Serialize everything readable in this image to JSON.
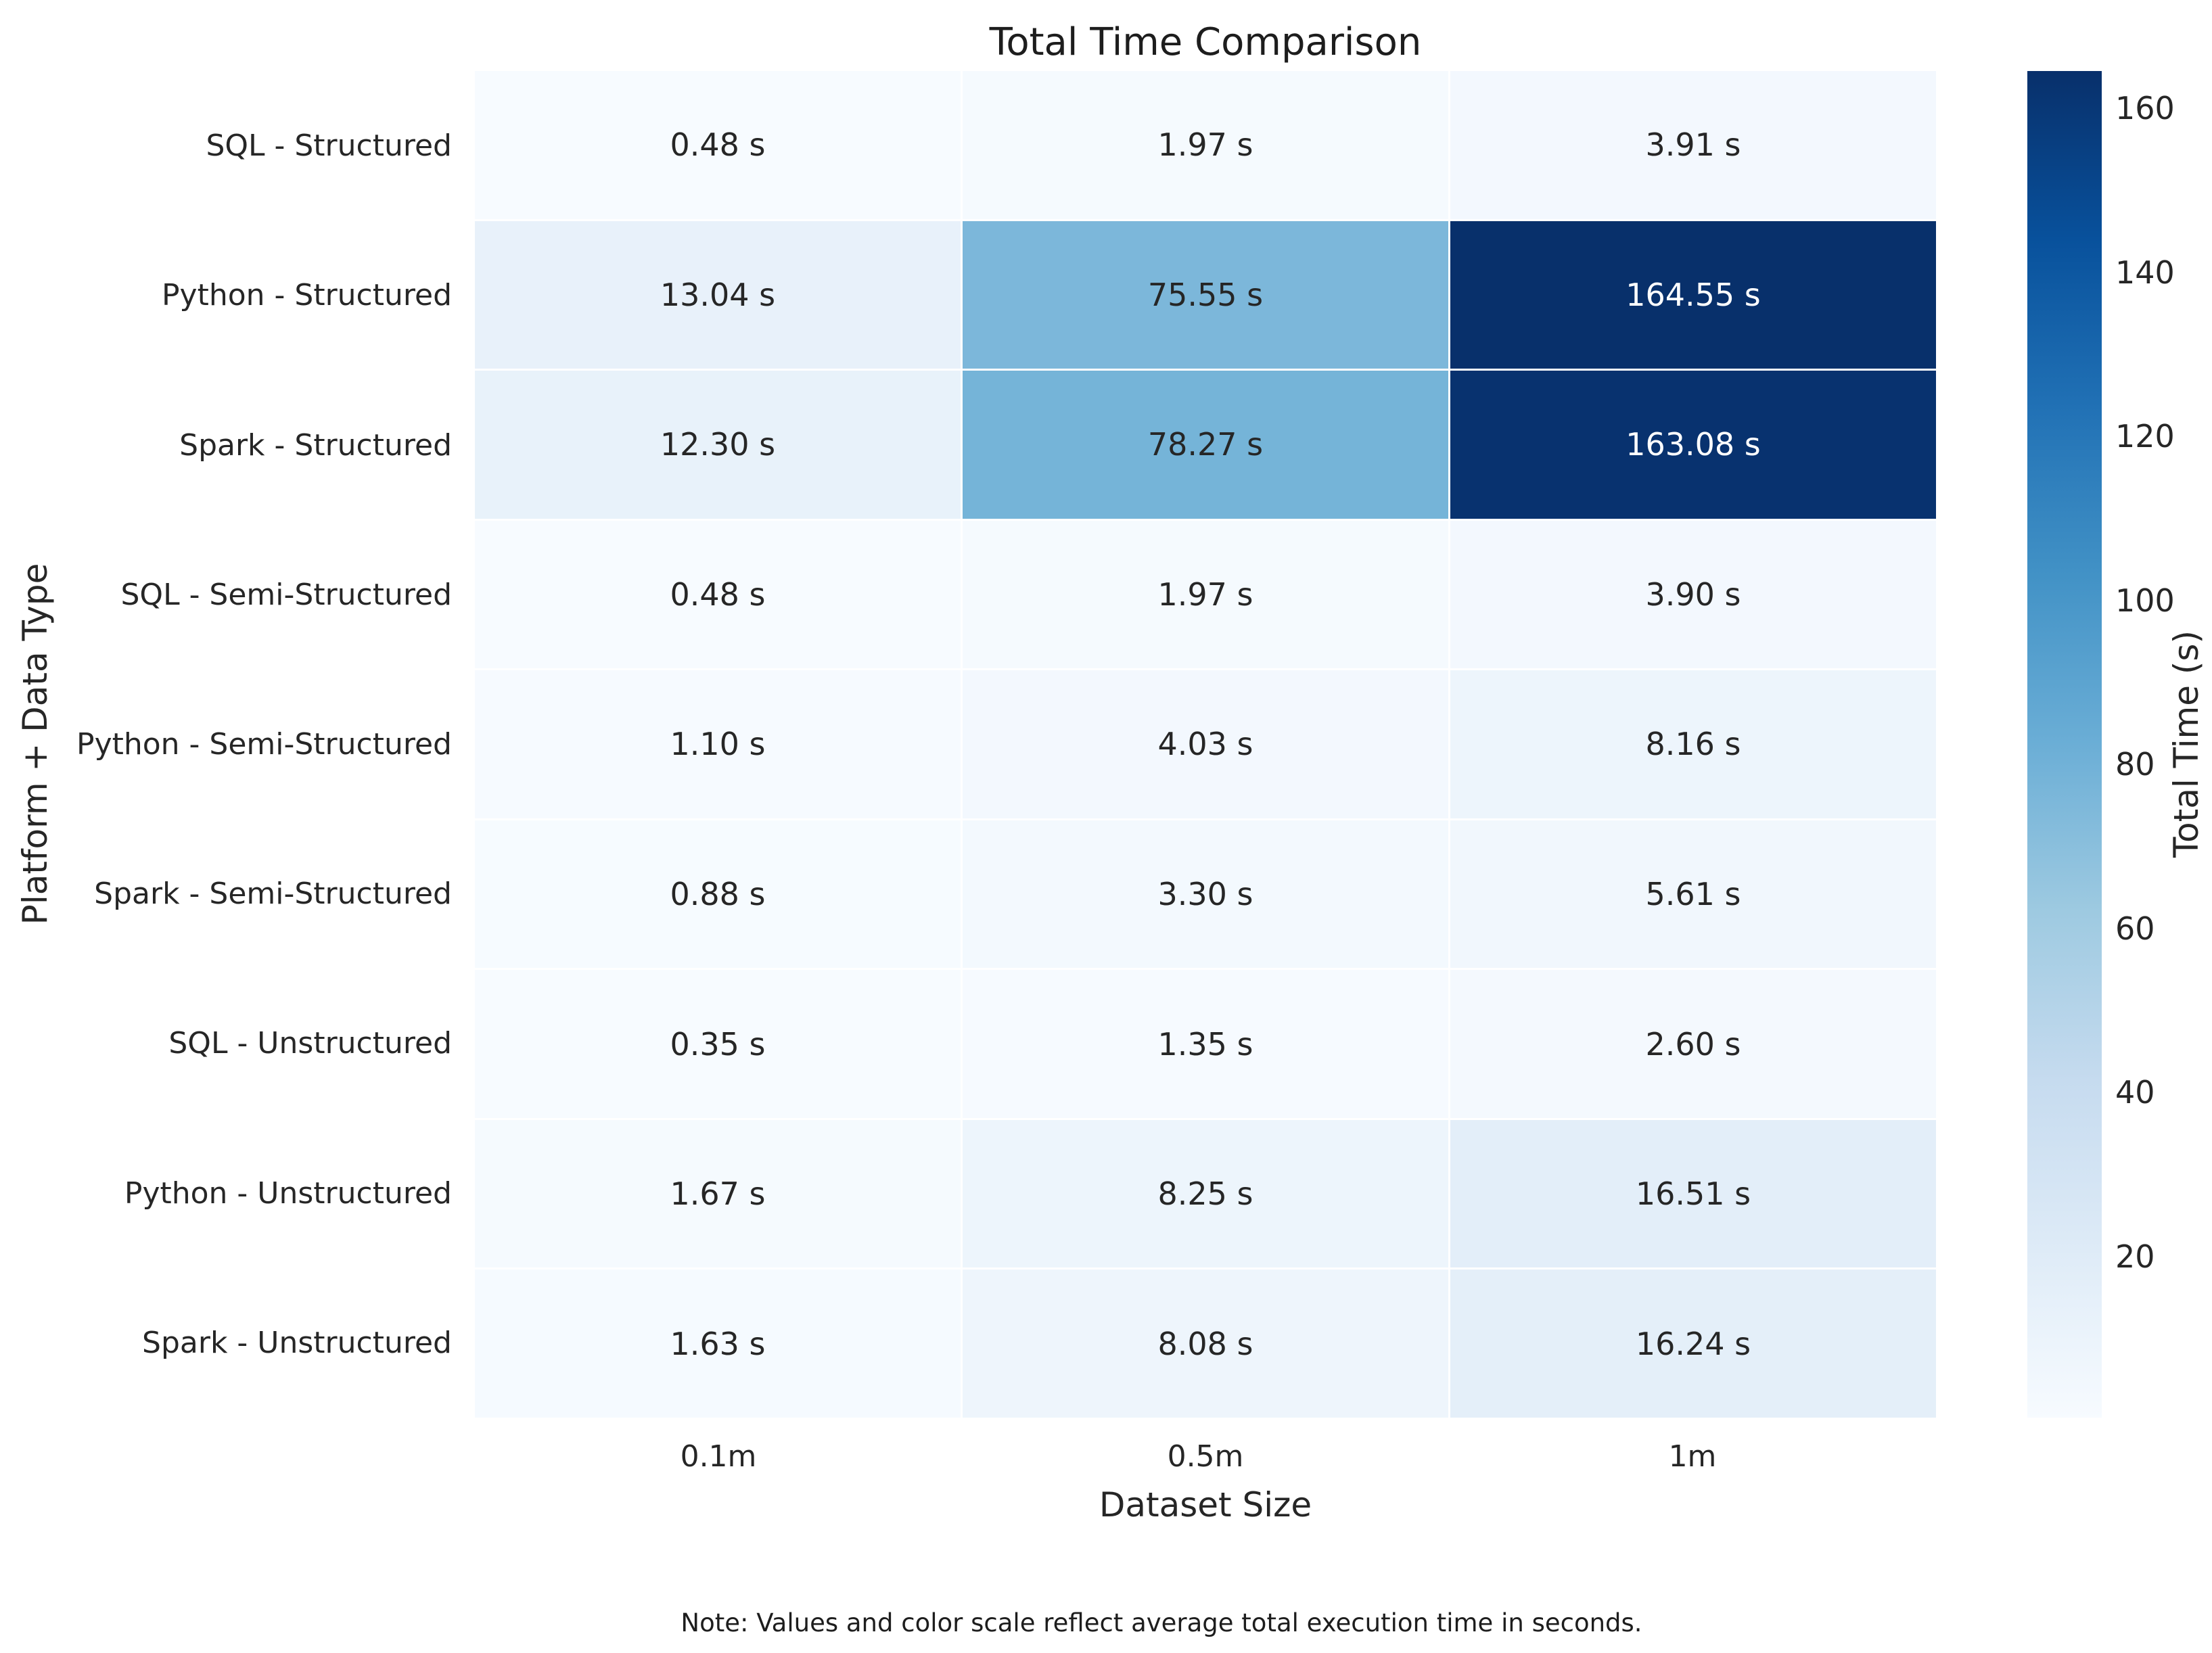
{
  "note": "Note: Values and color scale reflect average total execution time in seconds.",
  "colors": {
    "background": "#ffffff",
    "text_dark": "#262626",
    "text_light": "#ffffff",
    "cmap_stops": [
      "#f7fbff",
      "#deebf7",
      "#c6dbef",
      "#9ecae1",
      "#6baed6",
      "#4292c6",
      "#2171b5",
      "#08519c",
      "#08306b"
    ]
  },
  "chart_data": {
    "type": "heatmap",
    "title": "Total Time Comparison",
    "xlabel": "Dataset Size",
    "ylabel": "Platform + Data Type",
    "categories_x": [
      "0.1m",
      "0.5m",
      "1m"
    ],
    "rows": [
      {
        "label": "SQL - Structured",
        "values": [
          0.48,
          1.97,
          3.91
        ]
      },
      {
        "label": "Python - Structured",
        "values": [
          13.04,
          75.55,
          164.55
        ]
      },
      {
        "label": "Spark - Structured",
        "values": [
          12.3,
          78.27,
          163.08
        ]
      },
      {
        "label": "SQL - Semi-Structured",
        "values": [
          0.48,
          1.97,
          3.9
        ]
      },
      {
        "label": "Python - Semi-Structured",
        "values": [
          1.1,
          4.03,
          8.16
        ]
      },
      {
        "label": "Spark - Semi-Structured",
        "values": [
          0.88,
          3.3,
          5.61
        ]
      },
      {
        "label": "SQL - Unstructured",
        "values": [
          0.35,
          1.35,
          2.6
        ]
      },
      {
        "label": "Python - Unstructured",
        "values": [
          1.67,
          8.25,
          16.51
        ]
      },
      {
        "label": "Spark - Unstructured",
        "values": [
          1.63,
          8.08,
          16.24
        ]
      }
    ],
    "value_suffix": " s",
    "value_decimals": 2,
    "grid": false,
    "legend_position": "right",
    "colorbar": {
      "label": "Total Time (s)",
      "ticks": [
        20,
        40,
        60,
        80,
        100,
        120,
        140,
        160
      ],
      "vmin": 0.35,
      "vmax": 164.55,
      "colormap": "Blues"
    }
  }
}
